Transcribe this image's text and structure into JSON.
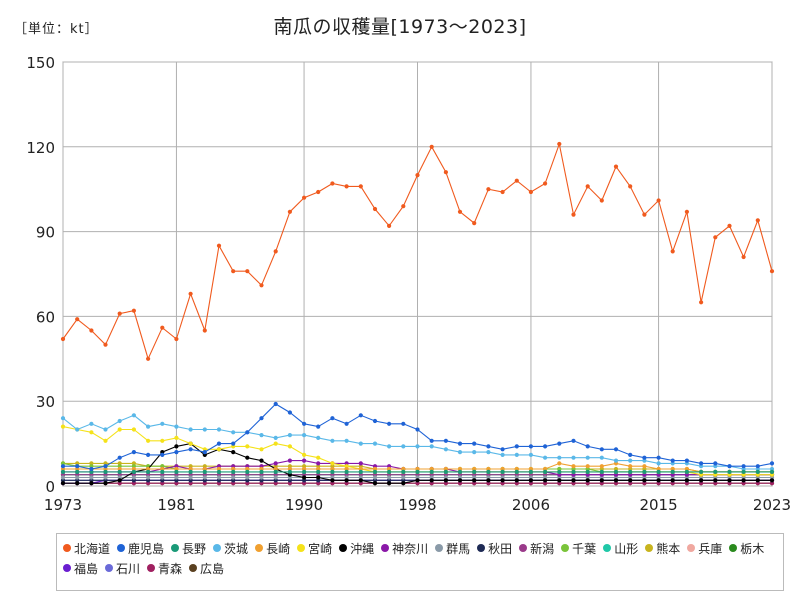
{
  "header": {
    "unit": "［単位：kt］",
    "title": "南瓜の収穫量[1973～2023]"
  },
  "chart_data": {
    "type": "line",
    "title": "南瓜の収穫量[1973～2023]",
    "unit": "［単位：kt］",
    "xlim": [
      1973,
      2023
    ],
    "ylim": [
      0,
      150
    ],
    "x_ticks": [
      1973,
      1981,
      1990,
      1998,
      2006,
      2015,
      2023
    ],
    "y_ticks": [
      0,
      30,
      60,
      90,
      120,
      150
    ],
    "grid": true,
    "legend_position": "bottom",
    "x": [
      1973,
      1974,
      1975,
      1976,
      1977,
      1978,
      1979,
      1980,
      1981,
      1982,
      1983,
      1984,
      1985,
      1986,
      1987,
      1988,
      1989,
      1990,
      1991,
      1992,
      1993,
      1994,
      1995,
      1996,
      1997,
      1998,
      1999,
      2000,
      2001,
      2002,
      2003,
      2004,
      2005,
      2006,
      2007,
      2008,
      2009,
      2010,
      2011,
      2012,
      2013,
      2014,
      2015,
      2016,
      2017,
      2018,
      2019,
      2020,
      2021,
      2022,
      2023
    ],
    "series": [
      {
        "name": "北海道",
        "color": "#f05a1e",
        "values": [
          52,
          59,
          55,
          50,
          61,
          62,
          45,
          56,
          52,
          68,
          55,
          85,
          76,
          76,
          71,
          83,
          97,
          102,
          104,
          107,
          106,
          106,
          98,
          92,
          99,
          110,
          120,
          111,
          97,
          93,
          105,
          104,
          108,
          104,
          107,
          121,
          96,
          106,
          101,
          113,
          106,
          96,
          101,
          83,
          97,
          65,
          88,
          92,
          81,
          94,
          76
        ]
      },
      {
        "name": "鹿児島",
        "color": "#1f63d6",
        "values": [
          7,
          7,
          6,
          7,
          10,
          12,
          11,
          11,
          12,
          13,
          12,
          15,
          15,
          19,
          24,
          29,
          26,
          22,
          21,
          24,
          22,
          25,
          23,
          22,
          22,
          20,
          16,
          16,
          15,
          15,
          14,
          13,
          14,
          14,
          14,
          15,
          16,
          14,
          13,
          13,
          11,
          10,
          10,
          9,
          9,
          8,
          8,
          7,
          7,
          7,
          8
        ]
      },
      {
        "name": "長野",
        "color": "#1a9a78",
        "values": [
          5,
          5,
          5,
          5,
          5,
          5,
          5,
          5,
          5,
          5,
          5,
          5,
          5,
          5,
          5,
          5,
          5,
          5,
          5,
          5,
          5,
          5,
          5,
          5,
          5,
          5,
          5,
          5,
          5,
          5,
          5,
          5,
          5,
          5,
          5,
          5,
          5,
          5,
          5,
          5,
          5,
          5,
          5,
          5,
          5,
          5,
          5,
          5,
          5,
          5,
          5
        ]
      },
      {
        "name": "茨城",
        "color": "#5ab8e8",
        "values": [
          24,
          20,
          22,
          20,
          23,
          25,
          21,
          22,
          21,
          20,
          20,
          20,
          19,
          19,
          18,
          17,
          18,
          18,
          17,
          16,
          16,
          15,
          15,
          14,
          14,
          14,
          14,
          13,
          12,
          12,
          12,
          11,
          11,
          11,
          10,
          10,
          10,
          10,
          10,
          9,
          9,
          9,
          8,
          8,
          8,
          7,
          7,
          7,
          6,
          6,
          6
        ]
      },
      {
        "name": "長崎",
        "color": "#f0a030",
        "values": [
          6,
          6,
          6,
          6,
          6,
          6,
          6,
          6,
          6,
          6,
          6,
          6,
          6,
          6,
          6,
          6,
          6,
          6,
          6,
          6,
          6,
          6,
          6,
          6,
          6,
          6,
          6,
          6,
          6,
          6,
          6,
          6,
          6,
          6,
          6,
          8,
          7,
          7,
          7,
          8,
          7,
          7,
          6,
          6,
          6,
          5,
          5,
          5,
          5,
          5,
          5
        ]
      },
      {
        "name": "宮崎",
        "color": "#f5e21a",
        "values": [
          21,
          20,
          19,
          16,
          20,
          20,
          16,
          16,
          17,
          15,
          13,
          13,
          14,
          14,
          13,
          15,
          14,
          11,
          10,
          8,
          7,
          6,
          5,
          5,
          5,
          5,
          5,
          5,
          5,
          5,
          5,
          5,
          5,
          5,
          5,
          5,
          5,
          5,
          5,
          5,
          5,
          5,
          5,
          5,
          5,
          4,
          4,
          4,
          4,
          4,
          4
        ]
      },
      {
        "name": "沖縄",
        "color": "#000000",
        "values": [
          1,
          1,
          1,
          1,
          2,
          5,
          6,
          12,
          14,
          15,
          11,
          13,
          12,
          10,
          9,
          6,
          4,
          3,
          3,
          2,
          2,
          2,
          1,
          1,
          1,
          2,
          2,
          2,
          2,
          2,
          2,
          2,
          2,
          2,
          2,
          2,
          2,
          2,
          2,
          2,
          2,
          2,
          2,
          2,
          2,
          2,
          2,
          2,
          2,
          2,
          2
        ]
      },
      {
        "name": "神奈川",
        "color": "#8a18a8",
        "values": [
          5,
          5,
          5,
          5,
          5,
          5,
          5,
          6,
          7,
          6,
          6,
          7,
          7,
          7,
          7,
          8,
          9,
          9,
          8,
          8,
          8,
          8,
          7,
          7,
          6,
          6,
          6,
          6,
          5,
          5,
          5,
          5,
          5,
          5,
          5,
          4,
          4,
          4,
          4,
          4,
          4,
          4,
          4,
          4,
          4,
          4,
          4,
          4,
          4,
          4,
          4
        ]
      },
      {
        "name": "群馬",
        "color": "#8a9aa8",
        "values": [
          3,
          3,
          3,
          3,
          3,
          3,
          3,
          3,
          3,
          3,
          3,
          3,
          3,
          3,
          3,
          3,
          3,
          3,
          3,
          3,
          3,
          3,
          3,
          3,
          3,
          3,
          3,
          3,
          3,
          3,
          3,
          3,
          3,
          3,
          3,
          3,
          3,
          3,
          3,
          3,
          3,
          3,
          3,
          3,
          3,
          3,
          3,
          3,
          3,
          3,
          3
        ]
      },
      {
        "name": "秋田",
        "color": "#1e2a55",
        "values": [
          2,
          2,
          2,
          2,
          2,
          2,
          2,
          2,
          2,
          2,
          2,
          2,
          2,
          2,
          2,
          2,
          2,
          2,
          2,
          2,
          2,
          2,
          2,
          2,
          2,
          2,
          2,
          2,
          2,
          2,
          2,
          2,
          2,
          2,
          2,
          2,
          2,
          2,
          2,
          2,
          2,
          2,
          2,
          2,
          2,
          2,
          2,
          2,
          2,
          2,
          2
        ]
      },
      {
        "name": "新潟",
        "color": "#9a3a8a",
        "values": [
          4,
          4,
          4,
          4,
          4,
          4,
          4,
          4,
          4,
          4,
          4,
          4,
          4,
          4,
          4,
          4,
          4,
          4,
          4,
          4,
          4,
          4,
          4,
          4,
          4,
          4,
          4,
          4,
          4,
          4,
          4,
          4,
          4,
          4,
          4,
          4,
          4,
          4,
          4,
          4,
          4,
          4,
          4,
          4,
          4,
          4,
          4,
          4,
          4,
          4,
          4
        ]
      },
      {
        "name": "千葉",
        "color": "#7ac43a",
        "values": [
          8,
          7,
          7,
          7,
          7,
          7,
          7,
          7,
          6,
          6,
          6,
          6,
          6,
          6,
          6,
          6,
          6,
          6,
          6,
          6,
          6,
          6,
          6,
          6,
          6,
          6,
          6,
          6,
          6,
          6,
          6,
          6,
          6,
          6,
          6,
          6,
          6,
          6,
          5,
          5,
          5,
          5,
          5,
          5,
          5,
          5,
          5,
          5,
          5,
          5,
          5
        ]
      },
      {
        "name": "山形",
        "color": "#20c8a8",
        "values": [
          4,
          4,
          4,
          4,
          4,
          4,
          4,
          4,
          4,
          4,
          4,
          4,
          4,
          4,
          4,
          4,
          4,
          4,
          4,
          4,
          4,
          4,
          4,
          4,
          4,
          4,
          4,
          4,
          4,
          4,
          4,
          4,
          4,
          4,
          4,
          4,
          4,
          4,
          4,
          4,
          4,
          4,
          4,
          4,
          4,
          4,
          4,
          4,
          4,
          4,
          4
        ]
      },
      {
        "name": "熊本",
        "color": "#c8b41e",
        "values": [
          8,
          8,
          8,
          8,
          8,
          8,
          7,
          7,
          7,
          7,
          7,
          7,
          7,
          7,
          7,
          7,
          7,
          7,
          7,
          7,
          7,
          7,
          6,
          6,
          6,
          6,
          6,
          6,
          6,
          6,
          6,
          6,
          6,
          6,
          6,
          6,
          6,
          6,
          6,
          6,
          6,
          6,
          6,
          6,
          6,
          5,
          5,
          5,
          5,
          5,
          5
        ]
      },
      {
        "name": "兵庫",
        "color": "#f0a8a0",
        "values": [
          3,
          3,
          3,
          3,
          3,
          3,
          3,
          3,
          3,
          3,
          3,
          3,
          3,
          3,
          3,
          3,
          3,
          3,
          3,
          3,
          3,
          3,
          3,
          3,
          3,
          3,
          3,
          3,
          3,
          3,
          3,
          3,
          3,
          3,
          3,
          3,
          3,
          3,
          3,
          3,
          3,
          3,
          3,
          3,
          3,
          3,
          3,
          3,
          3,
          3,
          3
        ]
      },
      {
        "name": "栃木",
        "color": "#2a8a1e",
        "values": [
          4,
          4,
          4,
          4,
          4,
          4,
          4,
          4,
          4,
          4,
          4,
          4,
          4,
          4,
          4,
          4,
          4,
          4,
          4,
          4,
          4,
          4,
          4,
          4,
          4,
          4,
          4,
          4,
          4,
          4,
          4,
          4,
          4,
          4,
          4,
          4,
          4,
          4,
          4,
          4,
          4,
          4,
          4,
          4,
          4,
          4,
          4,
          4,
          4,
          4,
          4
        ]
      },
      {
        "name": "福島",
        "color": "#6a1ed0",
        "values": [
          1,
          1,
          1,
          2,
          2,
          2,
          2,
          2,
          2,
          2,
          2,
          2,
          2,
          2,
          2,
          2,
          2,
          2,
          2,
          2,
          2,
          2,
          2,
          2,
          2,
          2,
          2,
          2,
          2,
          2,
          2,
          2,
          2,
          2,
          2,
          2,
          2,
          2,
          2,
          2,
          2,
          2,
          2,
          2,
          2,
          2,
          2,
          2,
          2,
          2,
          2
        ]
      },
      {
        "name": "石川",
        "color": "#6a6ad8",
        "values": [
          2,
          2,
          2,
          2,
          2,
          2,
          2,
          2,
          2,
          2,
          2,
          2,
          2,
          2,
          2,
          2,
          2,
          2,
          2,
          2,
          2,
          2,
          2,
          2,
          2,
          2,
          2,
          2,
          2,
          2,
          2,
          2,
          2,
          2,
          2,
          2,
          2,
          2,
          2,
          2,
          2,
          2,
          2,
          2,
          2,
          2,
          2,
          2,
          2,
          2,
          2
        ]
      },
      {
        "name": "青森",
        "color": "#a02060",
        "values": [
          1,
          1,
          1,
          1,
          1,
          1,
          1,
          1,
          1,
          1,
          1,
          1,
          1,
          1,
          1,
          1,
          1,
          1,
          1,
          1,
          1,
          1,
          1,
          1,
          1,
          1,
          1,
          1,
          1,
          1,
          1,
          1,
          1,
          1,
          1,
          1,
          1,
          1,
          1,
          1,
          1,
          1,
          1,
          1,
          1,
          1,
          1,
          1,
          1,
          1,
          1
        ]
      },
      {
        "name": "広島",
        "color": "#5a4020",
        "values": [
          1,
          1,
          1,
          1,
          1,
          1,
          1,
          1,
          1,
          1,
          1,
          1,
          1,
          1,
          1,
          1,
          1,
          1,
          1,
          1,
          1,
          1,
          1,
          1,
          1,
          1,
          1,
          1,
          1,
          1,
          1,
          1,
          1,
          1,
          1,
          1,
          1,
          1,
          1,
          1,
          1,
          1,
          1,
          1,
          1,
          1,
          1,
          1,
          1,
          1,
          1
        ]
      }
    ]
  }
}
